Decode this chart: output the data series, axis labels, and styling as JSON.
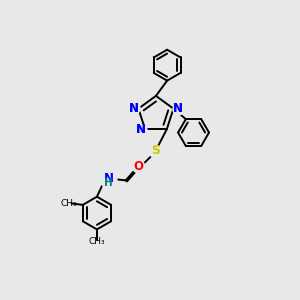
{
  "bg_color": "#e8e8e8",
  "bond_color": "#000000",
  "N_color": "#0000ff",
  "S_color": "#cccc00",
  "O_color": "#ff0000",
  "H_color": "#008080",
  "font_size": 8.5,
  "linewidth": 1.4,
  "figsize": [
    3.0,
    3.0
  ],
  "dpi": 100,
  "xlim": [
    0,
    10
  ],
  "ylim": [
    0,
    10
  ]
}
